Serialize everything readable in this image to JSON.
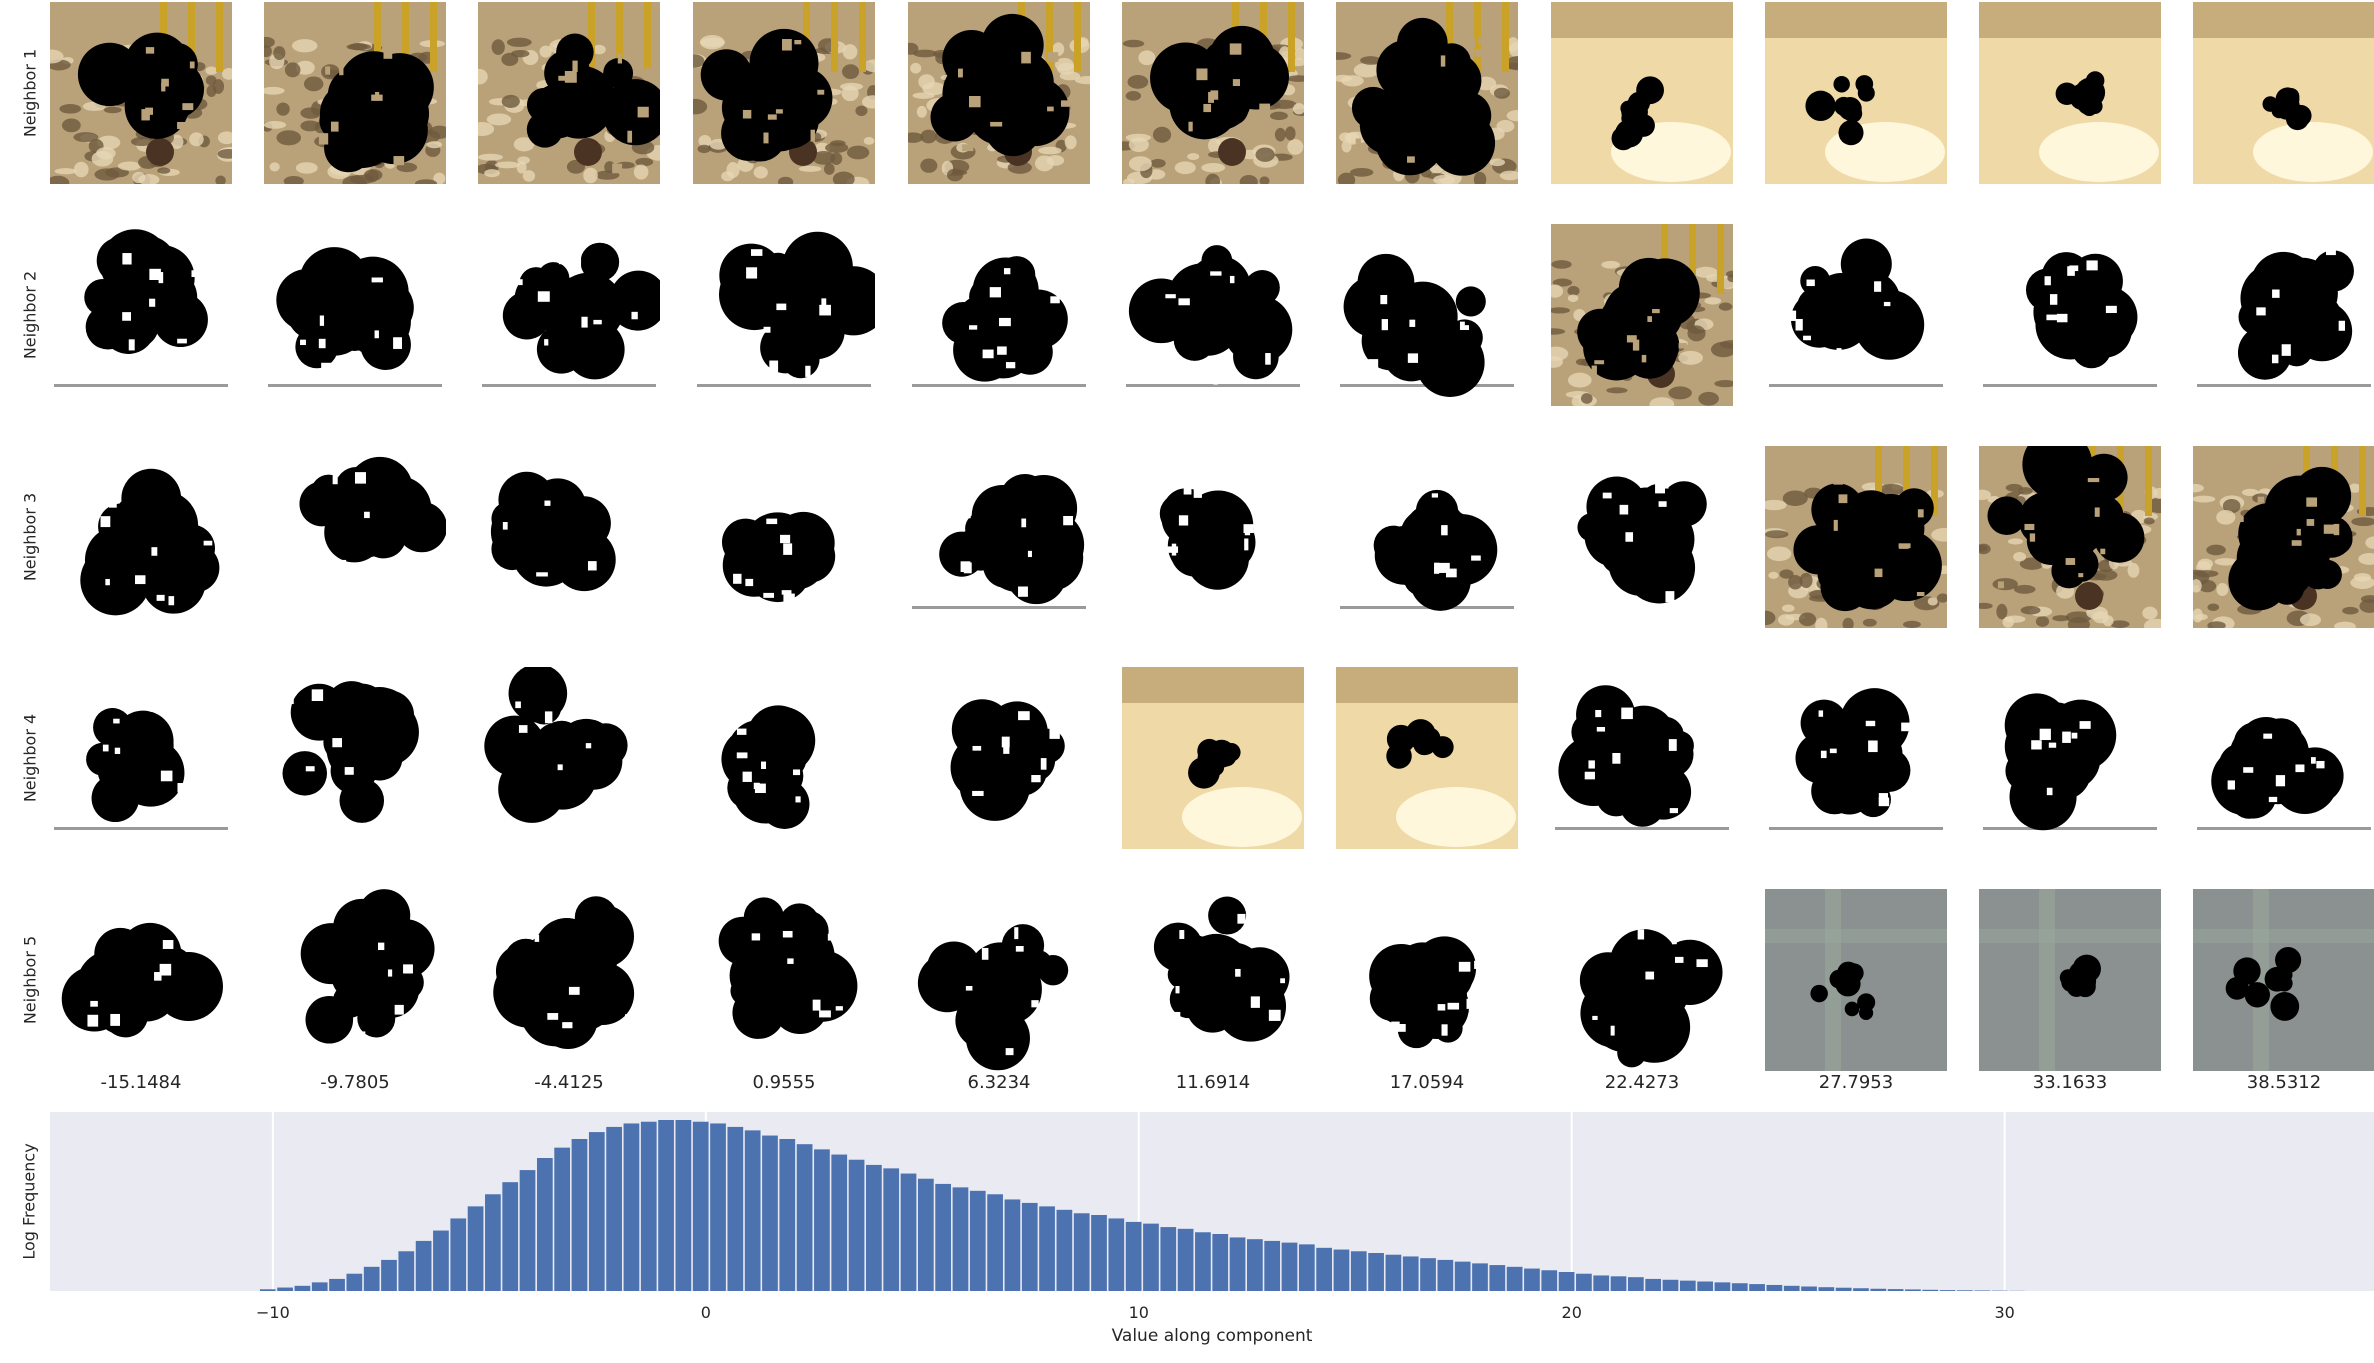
{
  "row_labels": [
    "Neighbor 1",
    "Neighbor 2",
    "Neighbor 3",
    "Neighbor 4",
    "Neighbor 5"
  ],
  "column_values": [
    "-15.1484",
    "-9.7805",
    "-4.4125",
    "0.9555",
    "6.3234",
    "11.6914",
    "17.0594",
    "22.4273",
    "27.7953",
    "33.1633",
    "38.5312"
  ],
  "tile_backgrounds": [
    [
      "sand-crowd",
      "sand-crowd",
      "sand-crowd",
      "sand-crowd",
      "sand-crowd",
      "sand-crowd",
      "sand-crowd",
      "warm-blur",
      "warm-blur",
      "warm-blur",
      "warm-blur"
    ],
    [
      "white-text",
      "white-text",
      "white-text",
      "white-text",
      "white-text",
      "white-text",
      "white-text",
      "sand-crowd",
      "white-text",
      "white-text",
      "white-text"
    ],
    [
      "white",
      "white",
      "white",
      "white",
      "white-text",
      "white",
      "white-text",
      "white",
      "sand-crowd",
      "sand-crowd",
      "sand-crowd"
    ],
    [
      "white-text",
      "white",
      "white",
      "white",
      "white",
      "warm-blur",
      "warm-blur",
      "white-text",
      "white-text",
      "white-text",
      "white-text"
    ],
    [
      "white",
      "white",
      "white",
      "white",
      "white",
      "white",
      "white",
      "white",
      "gray-blur",
      "gray-blur",
      "gray-blur"
    ]
  ],
  "colors": {
    "hist_bar": "#4c72b0",
    "hist_background": "#eaeaf2",
    "grid": "#ffffff",
    "mask": "#000000",
    "sand-crowd": "#b9a27a",
    "warm-blur": "#efd9a6",
    "gray-blur": "#8b9190",
    "white": "#ffffff"
  },
  "chart_data": {
    "type": "bar",
    "title": "",
    "xlabel": "Value along component",
    "ylabel": "Log Frequency",
    "xlim": [
      -15.1484,
      38.5312
    ],
    "xticks": [
      -10,
      0,
      10,
      20,
      30
    ],
    "tick_labels": [
      "−10",
      "0",
      "10",
      "20",
      "30"
    ],
    "y_tick_labels_shown": false,
    "grid": true,
    "bin_width": 0.4,
    "bins_start": -10.3,
    "values": [
      0.01,
      0.02,
      0.03,
      0.05,
      0.07,
      0.1,
      0.14,
      0.18,
      0.23,
      0.29,
      0.35,
      0.42,
      0.49,
      0.56,
      0.63,
      0.7,
      0.77,
      0.83,
      0.88,
      0.92,
      0.95,
      0.97,
      0.98,
      0.99,
      0.99,
      0.98,
      0.97,
      0.95,
      0.93,
      0.9,
      0.88,
      0.85,
      0.82,
      0.79,
      0.76,
      0.73,
      0.71,
      0.68,
      0.65,
      0.62,
      0.6,
      0.58,
      0.56,
      0.53,
      0.51,
      0.49,
      0.47,
      0.45,
      0.44,
      0.42,
      0.4,
      0.39,
      0.37,
      0.36,
      0.34,
      0.33,
      0.31,
      0.3,
      0.29,
      0.28,
      0.27,
      0.25,
      0.24,
      0.23,
      0.22,
      0.21,
      0.2,
      0.19,
      0.18,
      0.17,
      0.16,
      0.15,
      0.14,
      0.13,
      0.12,
      0.11,
      0.1,
      0.09,
      0.085,
      0.08,
      0.07,
      0.065,
      0.06,
      0.055,
      0.05,
      0.045,
      0.04,
      0.035,
      0.03,
      0.026,
      0.022,
      0.019,
      0.016,
      0.013,
      0.011,
      0.009,
      0.007,
      0.005,
      0.004,
      0.003,
      0.002,
      0.001
    ]
  }
}
